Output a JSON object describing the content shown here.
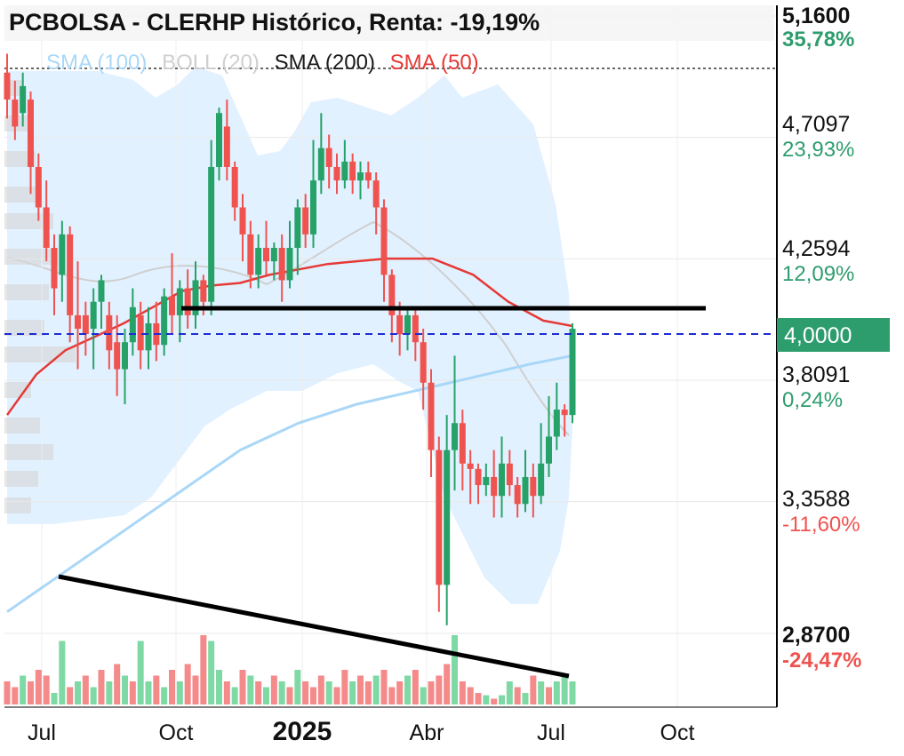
{
  "title": "PCBOLSA - CLERHP Histórico, Renta: -19,19%",
  "legend": [
    {
      "label": "SMA (100)",
      "color": "#a9d7f7"
    },
    {
      "label": "BOLL (20)",
      "color": "#cfcfcf"
    },
    {
      "label": "SMA (200)",
      "color": "#1a1a1a"
    },
    {
      "label": "SMA (50)",
      "color": "#e53935"
    }
  ],
  "colors": {
    "up": "#26a269",
    "down": "#ef5350",
    "vol_up": "#7fd9a4",
    "vol_down": "#f48a8a",
    "boll_fill": "#dcefff",
    "sma50": "#e53935",
    "sma100": "#a9d7f7",
    "current_badge": "#2e9d6e",
    "positive": "#2e9d6e",
    "negative": "#ef5350"
  },
  "chart_data": {
    "type": "candlestick",
    "title": "PCBOLSA - CLERHP Histórico, Renta: -19,19%",
    "x_labels": [
      "Jul",
      "Oct",
      "2025",
      "Abr",
      "Jul",
      "Oct"
    ],
    "y_axis": {
      "range": [
        2.87,
        5.16
      ],
      "ticks": [
        {
          "price": "5,1600",
          "pct": "35,78%",
          "sign": "pos",
          "bold": true
        },
        {
          "price": "4,7097",
          "pct": "23,93%",
          "sign": "pos",
          "bold": false
        },
        {
          "price": "4,2594",
          "pct": "12,09%",
          "sign": "pos",
          "bold": false
        },
        {
          "price": "3,8091",
          "pct": "0,24%",
          "sign": "pos",
          "bold": false
        },
        {
          "price": "3,3588",
          "pct": "-11,60%",
          "sign": "neg",
          "bold": false
        },
        {
          "price": "2,8700",
          "pct": "-24,47%",
          "sign": "neg",
          "bold": true
        }
      ],
      "current_price": "4,0000"
    },
    "series": [
      {
        "name": "SMA (50)",
        "points": [
          [
            0,
            3.68
          ],
          [
            0.05,
            3.83
          ],
          [
            0.1,
            3.92
          ],
          [
            0.15,
            3.97
          ],
          [
            0.2,
            4.02
          ],
          [
            0.25,
            4.08
          ],
          [
            0.3,
            4.14
          ],
          [
            0.35,
            4.16
          ],
          [
            0.4,
            4.17
          ],
          [
            0.45,
            4.2
          ],
          [
            0.55,
            4.24
          ],
          [
            0.65,
            4.26
          ],
          [
            0.73,
            4.26
          ],
          [
            0.8,
            4.2
          ],
          [
            0.86,
            4.1
          ],
          [
            0.92,
            4.03
          ],
          [
            0.97,
            4.01
          ]
        ]
      },
      {
        "name": "SMA (100)",
        "points": [
          [
            0,
            2.95
          ],
          [
            0.1,
            3.1
          ],
          [
            0.2,
            3.25
          ],
          [
            0.3,
            3.4
          ],
          [
            0.4,
            3.55
          ],
          [
            0.5,
            3.65
          ],
          [
            0.6,
            3.72
          ],
          [
            0.7,
            3.77
          ],
          [
            0.8,
            3.82
          ],
          [
            0.9,
            3.87
          ],
          [
            0.97,
            3.9
          ]
        ]
      }
    ],
    "candles": [
      [
        4.95,
        4.85,
        5.02,
        4.78
      ],
      [
        4.85,
        4.75,
        4.92,
        4.7
      ],
      [
        4.8,
        4.9,
        4.95,
        4.75
      ],
      [
        4.85,
        4.6,
        4.88,
        4.5
      ],
      [
        4.6,
        4.45,
        4.65,
        4.4
      ],
      [
        4.45,
        4.3,
        4.55,
        4.25
      ],
      [
        4.3,
        4.15,
        4.35,
        4.05
      ],
      [
        4.2,
        4.35,
        4.4,
        4.1
      ],
      [
        4.35,
        4.05,
        4.38,
        3.95
      ],
      [
        4.05,
        4.0,
        4.25,
        3.85
      ],
      [
        4.05,
        3.98,
        4.1,
        3.9
      ],
      [
        4.0,
        4.1,
        4.15,
        3.85
      ],
      [
        4.1,
        4.18,
        4.2,
        4.0
      ],
      [
        4.05,
        3.92,
        4.1,
        3.85
      ],
      [
        3.95,
        3.85,
        4.05,
        3.75
      ],
      [
        3.85,
        3.95,
        4.0,
        3.72
      ],
      [
        3.95,
        4.08,
        4.15,
        3.9
      ],
      [
        4.05,
        3.92,
        4.1,
        3.85
      ],
      [
        3.92,
        4.02,
        4.08,
        3.85
      ],
      [
        4.02,
        3.94,
        4.1,
        3.88
      ],
      [
        3.94,
        4.12,
        4.15,
        3.9
      ],
      [
        4.12,
        4.05,
        4.28,
        3.98
      ],
      [
        4.05,
        4.15,
        4.18,
        3.95
      ],
      [
        4.15,
        4.05,
        4.22,
        4.0
      ],
      [
        4.05,
        4.18,
        4.25,
        4.0
      ],
      [
        4.18,
        4.1,
        4.2,
        4.05
      ],
      [
        4.1,
        4.6,
        4.7,
        4.05
      ],
      [
        4.6,
        4.8,
        4.82,
        4.55
      ],
      [
        4.75,
        4.6,
        4.85,
        4.55
      ],
      [
        4.6,
        4.45,
        4.62,
        4.4
      ],
      [
        4.45,
        4.35,
        4.5,
        4.25
      ],
      [
        4.35,
        4.2,
        4.4,
        4.15
      ],
      [
        4.2,
        4.3,
        4.35,
        4.15
      ],
      [
        4.3,
        4.25,
        4.4,
        4.2
      ],
      [
        4.25,
        4.3,
        4.32,
        4.18
      ],
      [
        4.3,
        4.18,
        4.35,
        4.1
      ],
      [
        4.18,
        4.3,
        4.4,
        4.15
      ],
      [
        4.3,
        4.45,
        4.48,
        4.2
      ],
      [
        4.45,
        4.35,
        4.5,
        4.3
      ],
      [
        4.35,
        4.55,
        4.7,
        4.3
      ],
      [
        4.55,
        4.67,
        4.8,
        4.5
      ],
      [
        4.67,
        4.6,
        4.72,
        4.52
      ],
      [
        4.6,
        4.55,
        4.65,
        4.5
      ],
      [
        4.55,
        4.62,
        4.7,
        4.52
      ],
      [
        4.62,
        4.55,
        4.65,
        4.5
      ],
      [
        4.55,
        4.58,
        4.62,
        4.48
      ],
      [
        4.58,
        4.55,
        4.62,
        4.52
      ],
      [
        4.55,
        4.45,
        4.58,
        4.35
      ],
      [
        4.45,
        4.2,
        4.48,
        4.1
      ],
      [
        4.2,
        4.05,
        4.22,
        3.95
      ],
      [
        4.05,
        3.98,
        4.1,
        3.9
      ],
      [
        3.98,
        4.05,
        4.08,
        3.92
      ],
      [
        4.05,
        3.95,
        4.08,
        3.88
      ],
      [
        3.95,
        3.8,
        4.0,
        3.7
      ],
      [
        3.8,
        3.55,
        3.85,
        3.45
      ],
      [
        3.55,
        3.05,
        3.6,
        2.95
      ],
      [
        3.05,
        3.55,
        3.68,
        2.9
      ],
      [
        3.55,
        3.65,
        3.9,
        3.4
      ],
      [
        3.65,
        3.5,
        3.7,
        3.4
      ],
      [
        3.5,
        3.48,
        3.55,
        3.35
      ],
      [
        3.48,
        3.42,
        3.5,
        3.35
      ],
      [
        3.42,
        3.45,
        3.5,
        3.38
      ],
      [
        3.45,
        3.38,
        3.55,
        3.3
      ],
      [
        3.38,
        3.5,
        3.6,
        3.3
      ],
      [
        3.5,
        3.42,
        3.55,
        3.38
      ],
      [
        3.42,
        3.35,
        3.45,
        3.3
      ],
      [
        3.35,
        3.45,
        3.55,
        3.32
      ],
      [
        3.45,
        3.38,
        3.5,
        3.3
      ],
      [
        3.38,
        3.5,
        3.65,
        3.35
      ],
      [
        3.5,
        3.6,
        3.75,
        3.45
      ],
      [
        3.6,
        3.7,
        3.8,
        3.55
      ],
      [
        3.7,
        3.68,
        3.72,
        3.6
      ],
      [
        3.68,
        4.0,
        4.02,
        3.65
      ]
    ],
    "volumes": [
      [
        0.2,
        0
      ],
      [
        0.15,
        0
      ],
      [
        0.25,
        1
      ],
      [
        0.2,
        0
      ],
      [
        0.3,
        0
      ],
      [
        0.25,
        0
      ],
      [
        0.1,
        1
      ],
      [
        0.55,
        1
      ],
      [
        0.15,
        0
      ],
      [
        0.2,
        1
      ],
      [
        0.25,
        0
      ],
      [
        0.15,
        1
      ],
      [
        0.3,
        0
      ],
      [
        0.2,
        1
      ],
      [
        0.35,
        0
      ],
      [
        0.25,
        1
      ],
      [
        0.2,
        0
      ],
      [
        0.55,
        1
      ],
      [
        0.2,
        1
      ],
      [
        0.25,
        0
      ],
      [
        0.15,
        1
      ],
      [
        0.3,
        0
      ],
      [
        0.2,
        1
      ],
      [
        0.35,
        0
      ],
      [
        0.25,
        0
      ],
      [
        0.6,
        0
      ],
      [
        0.55,
        1
      ],
      [
        0.3,
        1
      ],
      [
        0.2,
        0
      ],
      [
        0.15,
        1
      ],
      [
        0.3,
        0
      ],
      [
        0.25,
        1
      ],
      [
        0.2,
        0
      ],
      [
        0.15,
        1
      ],
      [
        0.25,
        0
      ],
      [
        0.2,
        1
      ],
      [
        0.15,
        0
      ],
      [
        0.3,
        1
      ],
      [
        0.2,
        0
      ],
      [
        0.15,
        0
      ],
      [
        0.25,
        0
      ],
      [
        0.2,
        1
      ],
      [
        0.15,
        0
      ],
      [
        0.3,
        0
      ],
      [
        0.2,
        1
      ],
      [
        0.25,
        0
      ],
      [
        0.2,
        0
      ],
      [
        0.25,
        1
      ],
      [
        0.3,
        0
      ],
      [
        0.15,
        0
      ],
      [
        0.2,
        0
      ],
      [
        0.25,
        1
      ],
      [
        0.3,
        0
      ],
      [
        0.15,
        1
      ],
      [
        0.2,
        0
      ],
      [
        0.25,
        0
      ],
      [
        0.35,
        0
      ],
      [
        0.6,
        1
      ],
      [
        0.2,
        0
      ],
      [
        0.15,
        0
      ],
      [
        0.1,
        0
      ],
      [
        0.08,
        1
      ],
      [
        0.05,
        0
      ],
      [
        0.08,
        1
      ],
      [
        0.2,
        1
      ],
      [
        0.15,
        0
      ],
      [
        0.1,
        1
      ],
      [
        0.25,
        0
      ],
      [
        0.2,
        1
      ],
      [
        0.15,
        0
      ],
      [
        0.2,
        1
      ],
      [
        0.25,
        1
      ],
      [
        0.2,
        1
      ]
    ]
  }
}
